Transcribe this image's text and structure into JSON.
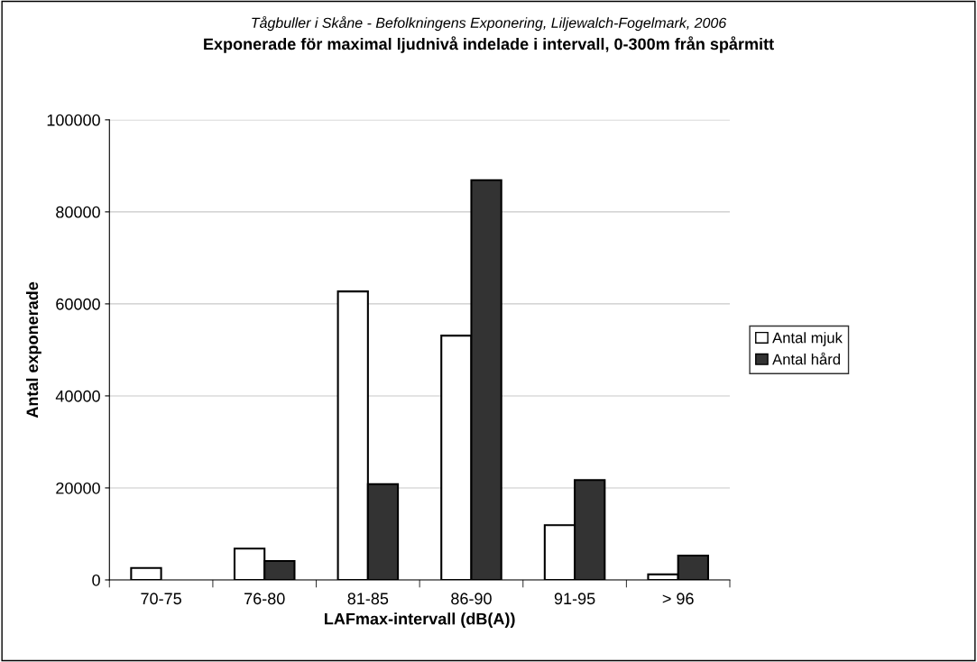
{
  "chart_data": {
    "type": "bar",
    "subtitle": "Tågbuller i Skåne - Befolkningens Exponering, Liljewalch-Fogelmark, 2006",
    "title": "Exponerade för maximal ljudnivå indelade i intervall, 0-300m från spårmitt",
    "xlabel": "LAFmax-intervall (dB(A))",
    "ylabel": "Antal exponerade",
    "categories": [
      "70-75",
      "76-80",
      "81-85",
      "86-90",
      "91-95",
      "> 96"
    ],
    "series": [
      {
        "name": "Antal mjuk",
        "color": "#ffffff",
        "values": [
          2600,
          6800,
          62700,
          53100,
          11900,
          1200
        ]
      },
      {
        "name": "Antal hård",
        "color": "#333333",
        "values": [
          null,
          4100,
          20800,
          86900,
          21700,
          5300
        ]
      }
    ],
    "ylim": [
      0,
      100000
    ],
    "yticks": [
      0,
      20000,
      40000,
      60000,
      80000,
      100000
    ],
    "grid": "y",
    "legend": "right"
  }
}
